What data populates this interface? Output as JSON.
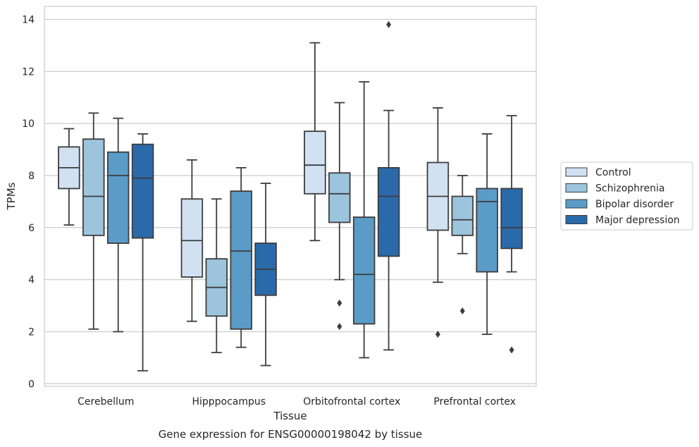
{
  "caption": "Gene expression for ENSG00000198042 by tissue",
  "chart_data": {
    "type": "boxplot",
    "xlabel": "Tissue",
    "ylabel": "TPMs",
    "ylim": [
      -0.1,
      14.5
    ],
    "yticks": [
      0,
      2,
      4,
      6,
      8,
      10,
      12,
      14
    ],
    "grid": "horizontal",
    "legend_placement": "right",
    "categories": [
      "Cerebellum",
      "Hipppocampus",
      "Orbitofrontal cortex",
      "Prefrontal cortex"
    ],
    "series": [
      {
        "name": "Control",
        "color": "#d1e1f2",
        "boxes": [
          {
            "whisker_low": 6.1,
            "q1": 7.5,
            "median": 8.3,
            "q3": 9.1,
            "whisker_high": 9.8,
            "outliers": []
          },
          {
            "whisker_low": 2.4,
            "q1": 4.1,
            "median": 5.5,
            "q3": 7.1,
            "whisker_high": 8.6,
            "outliers": []
          },
          {
            "whisker_low": 5.5,
            "q1": 7.3,
            "median": 8.4,
            "q3": 9.7,
            "whisker_high": 13.1,
            "outliers": []
          },
          {
            "whisker_low": 3.9,
            "q1": 5.9,
            "median": 7.2,
            "q3": 8.5,
            "whisker_high": 10.6,
            "outliers": [
              1.9
            ]
          }
        ]
      },
      {
        "name": "Schizophrenia",
        "color": "#9cc4dd",
        "boxes": [
          {
            "whisker_low": 2.1,
            "q1": 5.7,
            "median": 7.2,
            "q3": 9.4,
            "whisker_high": 10.4,
            "outliers": []
          },
          {
            "whisker_low": 1.2,
            "q1": 2.6,
            "median": 3.7,
            "q3": 4.8,
            "whisker_high": 7.1,
            "outliers": []
          },
          {
            "whisker_low": 4.0,
            "q1": 6.2,
            "median": 7.3,
            "q3": 8.1,
            "whisker_high": 10.8,
            "outliers": [
              3.1,
              2.2
            ]
          },
          {
            "whisker_low": 5.0,
            "q1": 5.7,
            "median": 6.3,
            "q3": 7.2,
            "whisker_high": 8.0,
            "outliers": [
              2.8
            ]
          }
        ]
      },
      {
        "name": "Bipolar disorder",
        "color": "#5b9bc8",
        "boxes": [
          {
            "whisker_low": 2.0,
            "q1": 5.4,
            "median": 8.0,
            "q3": 8.9,
            "whisker_high": 10.2,
            "outliers": []
          },
          {
            "whisker_low": 1.4,
            "q1": 2.1,
            "median": 5.1,
            "q3": 7.4,
            "whisker_high": 8.3,
            "outliers": []
          },
          {
            "whisker_low": 1.0,
            "q1": 2.3,
            "median": 4.2,
            "q3": 6.4,
            "whisker_high": 11.6,
            "outliers": []
          },
          {
            "whisker_low": 1.9,
            "q1": 4.3,
            "median": 7.0,
            "q3": 7.5,
            "whisker_high": 9.6,
            "outliers": []
          }
        ]
      },
      {
        "name": "Major depression",
        "color": "#2a6aab",
        "boxes": [
          {
            "whisker_low": 0.5,
            "q1": 5.6,
            "median": 7.9,
            "q3": 9.2,
            "whisker_high": 9.6,
            "outliers": []
          },
          {
            "whisker_low": 0.7,
            "q1": 3.4,
            "median": 4.4,
            "q3": 5.4,
            "whisker_high": 7.7,
            "outliers": []
          },
          {
            "whisker_low": 1.3,
            "q1": 4.9,
            "median": 7.2,
            "q3": 8.3,
            "whisker_high": 10.5,
            "outliers": [
              13.8
            ]
          },
          {
            "whisker_low": 4.3,
            "q1": 5.2,
            "median": 6.0,
            "q3": 7.5,
            "whisker_high": 10.3,
            "outliers": [
              1.3
            ]
          }
        ]
      }
    ]
  }
}
